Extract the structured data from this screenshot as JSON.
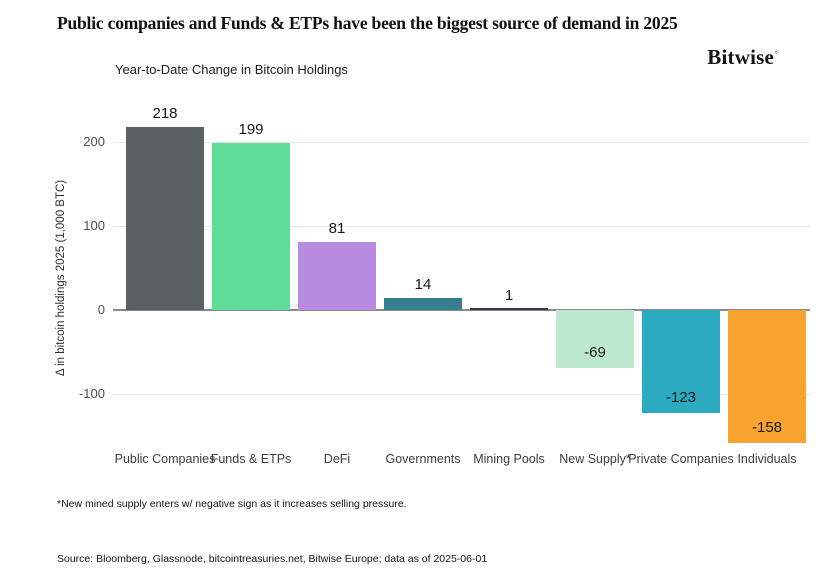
{
  "header": {
    "title": "Public companies and Funds & ETPs have been the biggest source of demand in 2025",
    "brand": "Bitwise",
    "brand_mark": "°"
  },
  "chart_data": {
    "type": "bar",
    "title": "Year-to-Date Change in Bitcoin Holdings",
    "xlabel": "",
    "ylabel": "Δ in bitcoin holdings 2025 (1,000 BTC)",
    "categories": [
      "Public Companies",
      "Funds & ETPs",
      "DeFi",
      "Governments",
      "Mining Pools",
      "New Supply*",
      "Private Companies",
      "Individuals"
    ],
    "values": [
      218,
      199,
      81,
      14,
      1,
      -69,
      -123,
      -158
    ],
    "value_labels": [
      "218",
      "199",
      "81",
      "14",
      "1",
      "-69",
      "-123",
      "-158"
    ],
    "bar_colors": [
      "#5b6065",
      "#5fdc96",
      "#b88ce0",
      "#347e8e",
      "#333845",
      "#bce8cf",
      "#2caabf",
      "#f7a32d"
    ],
    "yticks": [
      200,
      100,
      0,
      -100
    ],
    "ylim": [
      -170,
      240
    ],
    "grid": true,
    "legend": "none",
    "gridline_color": "#e7e7e7",
    "zeroline_color": "#8a8a8a"
  },
  "footnote": "*New mined supply enters w/ negative sign as it increases selling pressure.",
  "source": "Source: Bloomberg, Glassnode, bitcointreasuries.net, Bitwise Europe; data as of 2025-06-01"
}
